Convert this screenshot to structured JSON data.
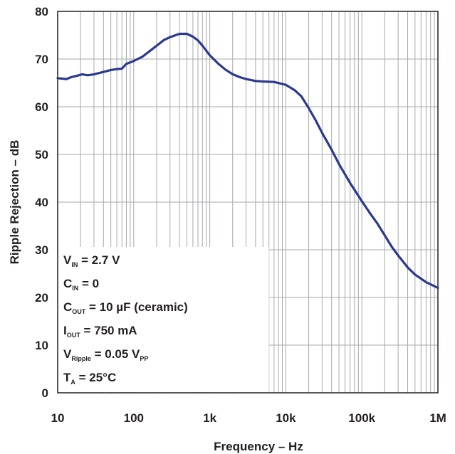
{
  "chart_data": {
    "type": "line",
    "xlabel": "Frequency – Hz",
    "ylabel": "Ripple Rejection – dB",
    "xscale": "log",
    "xlim": [
      10,
      1000000
    ],
    "ylim": [
      0,
      80
    ],
    "x_ticks": [
      {
        "value": 10,
        "label": "10"
      },
      {
        "value": 100,
        "label": "100"
      },
      {
        "value": 1000,
        "label": "1k"
      },
      {
        "value": 10000,
        "label": "10k"
      },
      {
        "value": 100000,
        "label": "100k"
      },
      {
        "value": 1000000,
        "label": "1M"
      }
    ],
    "y_ticks": [
      0,
      10,
      20,
      30,
      40,
      50,
      60,
      70,
      80
    ],
    "grid": true,
    "line_color": "#2b3990",
    "conditions": [
      {
        "main": "V",
        "sub": "IN",
        "rest": " = 2.7 V"
      },
      {
        "main": "C",
        "sub": "IN",
        "rest": " = 0"
      },
      {
        "main": "C",
        "sub": "OUT",
        "rest": " = 10 µF (ceramic)"
      },
      {
        "main": "I",
        "sub": "OUT",
        "rest": " = 750 mA"
      },
      {
        "main": "V",
        "sub": "Ripple",
        "rest": " = 0.05 V",
        "sub2": "PP"
      },
      {
        "main": "T",
        "sub": "A",
        "rest": " = 25°C"
      }
    ],
    "series": [
      {
        "x": [
          10,
          13,
          15,
          18,
          21,
          25,
          30,
          40,
          50,
          60,
          70,
          80,
          100,
          130,
          160,
          200,
          250,
          300,
          400,
          500,
          600,
          700,
          800,
          1000,
          1300,
          1600,
          2000,
          2500,
          3000,
          4000,
          5000,
          7000,
          10000,
          13000,
          16000,
          20000,
          25000,
          30000,
          40000,
          50000,
          70000,
          100000,
          130000,
          160000,
          200000,
          250000,
          300000,
          400000,
          500000,
          700000,
          1000000
        ],
        "y": [
          66,
          65.8,
          66.2,
          66.5,
          66.8,
          66.6,
          66.8,
          67.3,
          67.7,
          67.9,
          68.0,
          69.0,
          69.6,
          70.5,
          71.6,
          72.8,
          74.0,
          74.6,
          75.3,
          75.3,
          74.7,
          73.9,
          72.8,
          70.8,
          69.0,
          67.8,
          66.8,
          66.2,
          65.8,
          65.4,
          65.3,
          65.2,
          64.6,
          63.5,
          62.2,
          59.7,
          57.0,
          54.5,
          51.0,
          48.0,
          44.0,
          40.2,
          37.5,
          35.5,
          33.0,
          30.5,
          28.8,
          26.3,
          24.8,
          23.2,
          22.0
        ]
      }
    ]
  }
}
